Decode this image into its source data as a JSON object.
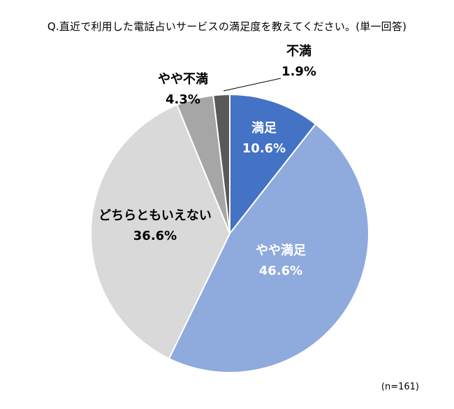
{
  "chart_data": {
    "type": "pie",
    "title": "Q.直近で利用した電話占いサービスの満足度を教えてください。(単一回答)",
    "labels": [
      "満足",
      "やや満足",
      "どちらともいえない",
      "やや不満",
      "不満"
    ],
    "values": [
      10.6,
      46.6,
      36.6,
      4.3,
      1.9
    ],
    "percent_labels": [
      "10.6%",
      "46.6%",
      "36.6%",
      "4.3%",
      "1.9%"
    ],
    "colors": [
      "#4472C4",
      "#8FAADC",
      "#D9D9D9",
      "#A6A6A6",
      "#595959"
    ],
    "start_angle_deg": 0,
    "direction": "clockwise",
    "legend": "none",
    "sample_note": "(n=161)"
  }
}
